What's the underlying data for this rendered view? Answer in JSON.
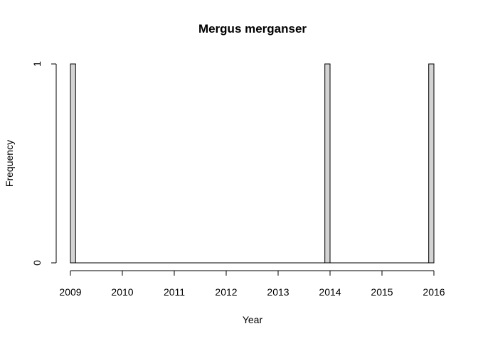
{
  "chart_data": {
    "type": "bar",
    "title": "Mergus merganser",
    "xlabel": "Year",
    "ylabel": "Frequency",
    "x_ticks": [
      "2009",
      "2010",
      "2011",
      "2012",
      "2013",
      "2014",
      "2015",
      "2016"
    ],
    "y_ticks": [
      "0",
      "1"
    ],
    "xlim": [
      2009,
      2016
    ],
    "ylim": [
      0,
      1
    ],
    "bin_width_years": 0.1,
    "bar_fill": "#d3d3d3",
    "bar_stroke": "#000000",
    "bars": [
      {
        "x": 2009.0,
        "value": 1
      },
      {
        "x": 2013.9,
        "value": 1
      },
      {
        "x": 2015.9,
        "value": 1
      }
    ]
  }
}
